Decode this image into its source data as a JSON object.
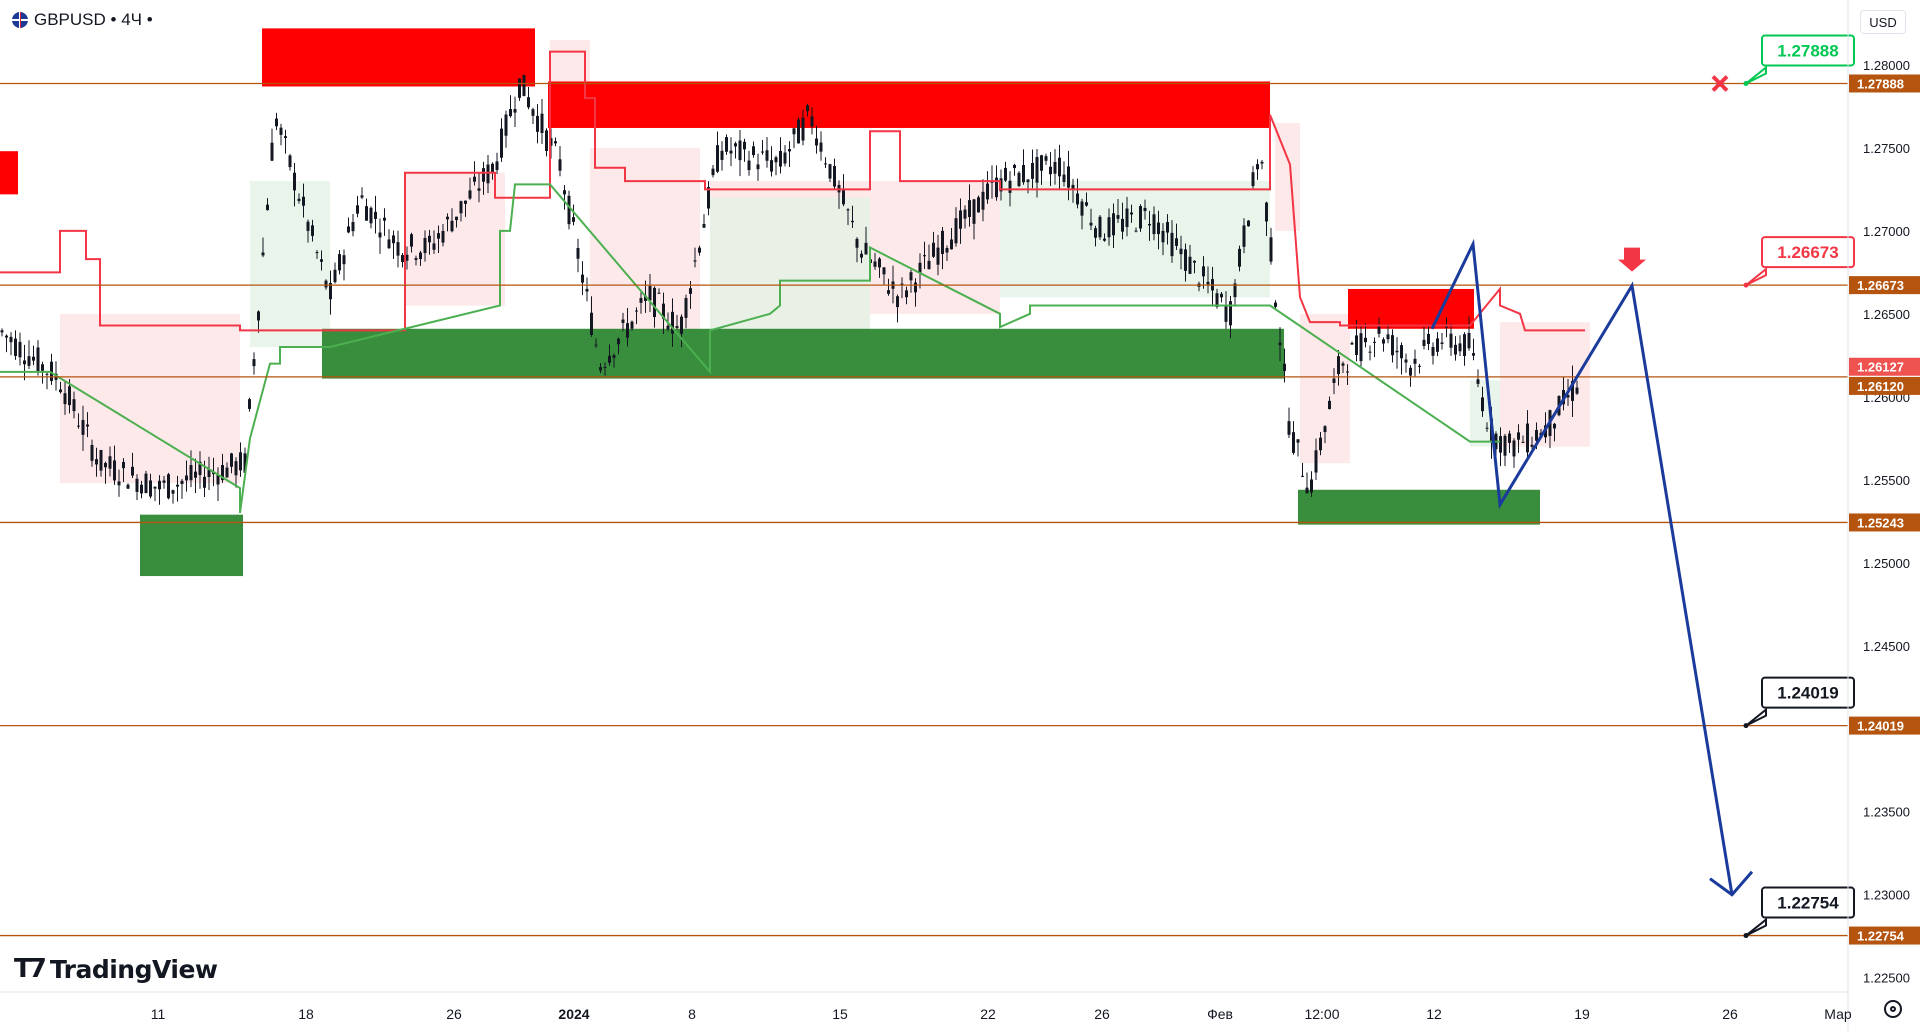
{
  "header": {
    "symbol": "GBPUSD",
    "interval": "4Ч",
    "title": "GBPUSD • 4Ч •"
  },
  "currency_button": "USD",
  "logo_text": "TradingView",
  "colors": {
    "level_line": "#b5540f",
    "supply_zone": "#ff0000",
    "demand_zone": "#388e3c",
    "bull_candle": "#26a69a",
    "bear_candle": "#ef5350",
    "forecast_path": "#1a3a9c",
    "resistance_trail": "#f23645",
    "support_trail": "#4caf50"
  },
  "chart_data": {
    "type": "candlestick",
    "symbol": "GBPUSD",
    "timeframe": "4Ч",
    "title": "",
    "xlabel": "",
    "ylabel": "",
    "ylim": [
      1.2245,
      1.2815
    ],
    "y_ticks": [
      "1.28000",
      "1.27500",
      "1.27000",
      "1.26500",
      "1.26000",
      "1.25500",
      "1.25000",
      "1.24500",
      "1.24000",
      "1.23500",
      "1.23000",
      "1.22500"
    ],
    "x_ticks": [
      "11",
      "18",
      "26",
      "2024",
      "8",
      "15",
      "22",
      "26",
      "Фев",
      "12:00",
      "12",
      "19",
      "26",
      "Мар"
    ],
    "price_labels": [
      {
        "value": 1.27888,
        "label": "1.27888",
        "color": "#b5540f"
      },
      {
        "value": 1.26673,
        "label": "1.26673",
        "color": "#b5540f"
      },
      {
        "value": 1.26127,
        "label": "1.26127",
        "color": "#ef5350"
      },
      {
        "value": 1.2612,
        "label": "1.26120",
        "color": "#b5540f"
      },
      {
        "value": 1.25243,
        "label": "1.25243",
        "color": "#b5540f"
      },
      {
        "value": 1.24019,
        "label": "1.24019",
        "color": "#b5540f"
      },
      {
        "value": 1.22754,
        "label": "1.22754",
        "color": "#b5540f"
      }
    ],
    "horizontal_levels": [
      1.27888,
      1.26673,
      1.2612,
      1.25243,
      1.24019,
      1.22754
    ],
    "callouts": [
      {
        "value": 1.27888,
        "label": "1.27888",
        "color": "#00c853"
      },
      {
        "value": 1.26673,
        "label": "1.26673",
        "color": "#f23645"
      },
      {
        "value": 1.24019,
        "label": "1.24019",
        "color": "#131722"
      },
      {
        "value": 1.22754,
        "label": "1.22754",
        "color": "#131722"
      }
    ],
    "supply_zones": [
      {
        "from": 1.2787,
        "to": 1.2822
      },
      {
        "from": 1.2762,
        "to": 1.279
      },
      {
        "from": 1.2641,
        "to": 1.2665
      },
      {
        "from": 1.2722,
        "to": 1.2748
      }
    ],
    "demand_zones": [
      {
        "from": 1.2611,
        "to": 1.2641
      },
      {
        "from": 1.2523,
        "to": 1.2544
      },
      {
        "from": 1.2492,
        "to": 1.2529
      }
    ],
    "forecast_path": [
      1.2641,
      1.2692,
      1.2535,
      1.2667,
      1.23
    ]
  }
}
